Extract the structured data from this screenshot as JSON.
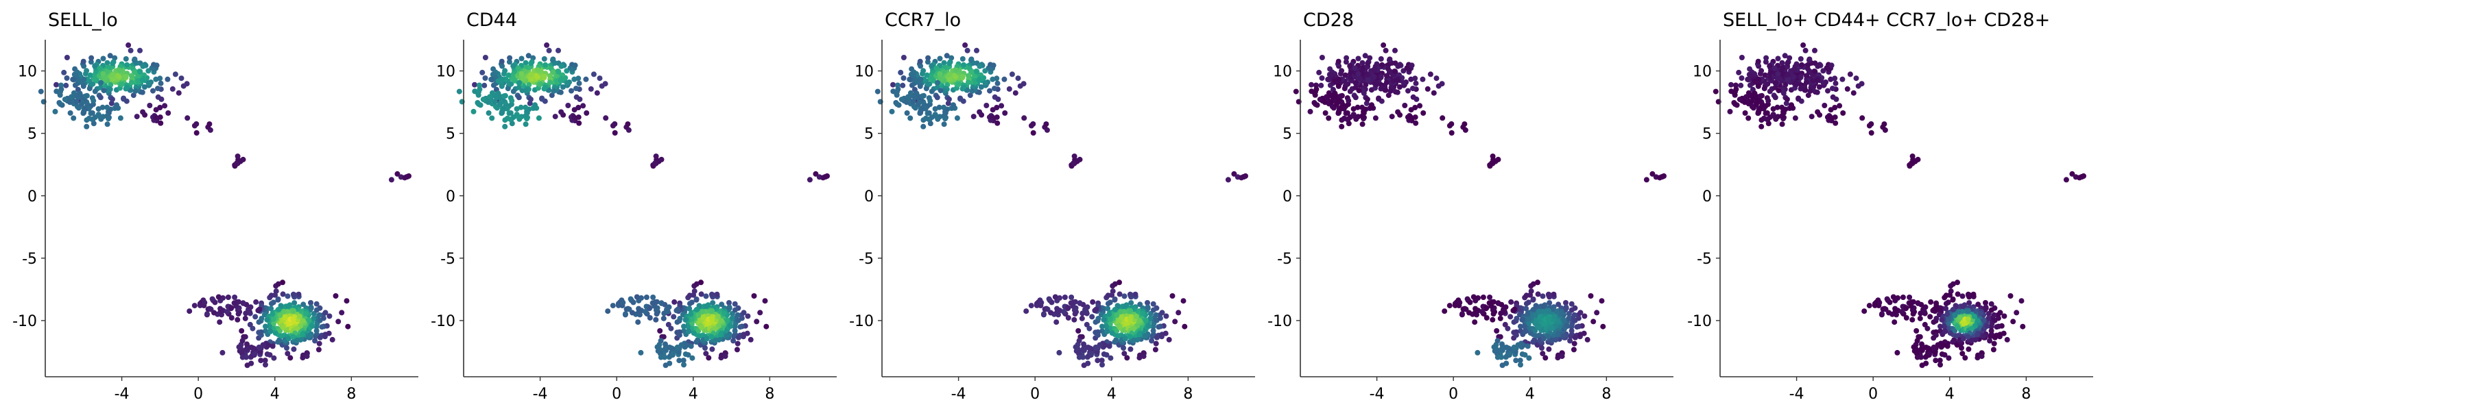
{
  "chart_data": [
    {
      "type": "scatter",
      "title": "SELL_lo",
      "xlim": [
        -8,
        11.5
      ],
      "ylim": [
        -14.5,
        12.5
      ],
      "xticks": [
        -4,
        0,
        4,
        8
      ],
      "yticks": [
        10,
        5,
        0,
        -5,
        -10
      ],
      "xtick_labels": [
        "-4",
        "0",
        "4",
        "8"
      ],
      "ytick_labels": [
        "10",
        "5",
        "0",
        "-5",
        "-10"
      ],
      "color_profile": {
        "upper_main": 0.75,
        "upper_edge": 0.35,
        "trail": 0.05,
        "lower_main": 0.95,
        "lower_side": 0.08,
        "lower_bottom": 0.1,
        "lower_spread": 1.0,
        "far_right": 0.05
      }
    },
    {
      "type": "scatter",
      "title": "CD44",
      "xlim": [
        -8,
        11.5
      ],
      "ylim": [
        -14.5,
        12.5
      ],
      "xticks": [
        -4,
        0,
        4,
        8
      ],
      "yticks": [
        10,
        5,
        0,
        -5,
        -10
      ],
      "xtick_labels": [
        "-4",
        "0",
        "4",
        "8"
      ],
      "ytick_labels": [
        "10",
        "5",
        "0",
        "-5",
        "-10"
      ],
      "color_profile": {
        "upper_main": 0.8,
        "upper_edge": 0.5,
        "trail": 0.05,
        "lower_main": 0.92,
        "lower_side": 0.3,
        "lower_bottom": 0.35,
        "lower_spread": 1.0,
        "far_right": 0.05
      }
    },
    {
      "type": "scatter",
      "title": "CCR7_lo",
      "xlim": [
        -8,
        11.5
      ],
      "ylim": [
        -14.5,
        12.5
      ],
      "xticks": [
        -4,
        0,
        4,
        8
      ],
      "yticks": [
        10,
        5,
        0,
        -5,
        -10
      ],
      "xtick_labels": [
        "-4",
        "0",
        "4",
        "8"
      ],
      "ytick_labels": [
        "10",
        "5",
        "0",
        "-5",
        "-10"
      ],
      "color_profile": {
        "upper_main": 0.75,
        "upper_edge": 0.35,
        "trail": 0.05,
        "lower_main": 0.9,
        "lower_side": 0.12,
        "lower_bottom": 0.15,
        "lower_spread": 1.0,
        "far_right": 0.05
      }
    },
    {
      "type": "scatter",
      "title": "CD28",
      "xlim": [
        -8,
        11.5
      ],
      "ylim": [
        -14.5,
        12.5
      ],
      "xticks": [
        -4,
        0,
        4,
        8
      ],
      "yticks": [
        10,
        5,
        0,
        -5,
        -10
      ],
      "xtick_labels": [
        "-4",
        "0",
        "4",
        "8"
      ],
      "ytick_labels": [
        "10",
        "5",
        "0",
        "-5",
        "-10"
      ],
      "color_profile": {
        "upper_main": 0.0,
        "upper_edge": 0.0,
        "trail": 0.0,
        "lower_main": 0.55,
        "lower_side": 0.0,
        "lower_bottom": 0.35,
        "lower_spread": 1.0,
        "far_right": 0.0
      }
    },
    {
      "type": "scatter",
      "title": "SELL_lo+ CD44+ CCR7_lo+ CD28+",
      "xlim": [
        -8,
        11.5
      ],
      "ylim": [
        -14.5,
        12.5
      ],
      "xticks": [
        -4,
        0,
        4,
        8
      ],
      "yticks": [
        10,
        5,
        0,
        -5,
        -10
      ],
      "xtick_labels": [
        "-4",
        "0",
        "4",
        "8"
      ],
      "ytick_labels": [
        "10",
        "5",
        "0",
        "-5",
        "-10"
      ],
      "color_profile": {
        "upper_main": 0.0,
        "upper_edge": 0.0,
        "trail": 0.0,
        "lower_main": 0.95,
        "lower_side": 0.0,
        "lower_bottom": 0.0,
        "lower_spread": 0.55,
        "far_right": 0.0
      }
    }
  ]
}
